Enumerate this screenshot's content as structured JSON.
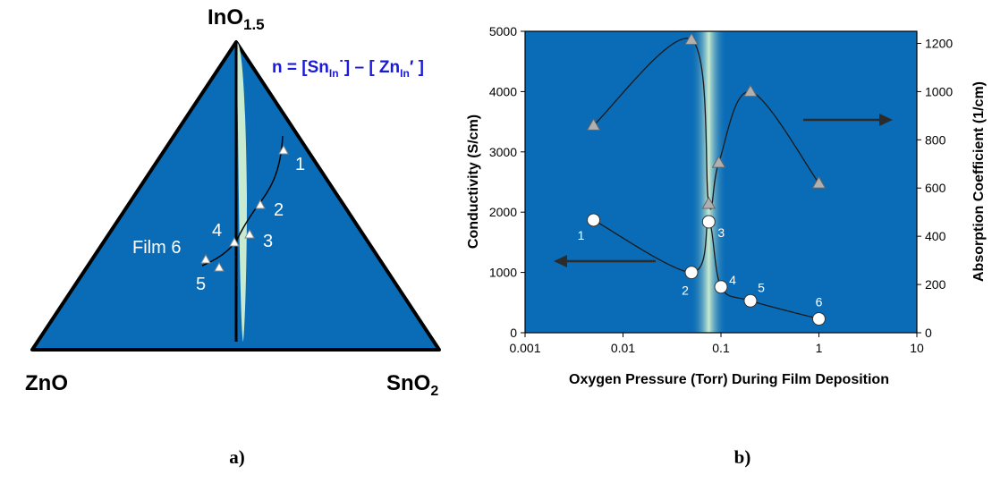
{
  "panel_a": {
    "caption": "a)",
    "apex_top": {
      "main": "InO",
      "sub": "1.5"
    },
    "apex_left": "ZnO",
    "apex_right": {
      "main": "SnO",
      "sub": "2"
    },
    "formula": {
      "part1": "n = [Sn",
      "sub1": "In",
      "part2": "˙] – [ Zn",
      "sub2": "In",
      "part3": "′ ]"
    },
    "film_label": "Film 6",
    "point_labels": [
      "1",
      "2",
      "3",
      "4",
      "5"
    ],
    "colors": {
      "fill": "#0a6cb6",
      "edge": "#000000",
      "band": "#c8ead0",
      "text_light": "#ffffff",
      "formula": "#1a1adc"
    }
  },
  "chart_data": {
    "type": "scatter",
    "caption": "b)",
    "xlabel": "Oxygen Pressure (Torr) During Film Deposition",
    "ylabel_left": "Conductivity (S/cm)",
    "ylabel_right": "Absorption  Coefficient (1/cm)",
    "x_scale": "log",
    "xlim": [
      0.001,
      10
    ],
    "x_ticks": [
      0.001,
      0.01,
      0.1,
      1,
      10
    ],
    "x_tick_labels": [
      "0.001",
      "0.01",
      "0.1",
      "1",
      "10"
    ],
    "ylim_left": [
      0,
      5000
    ],
    "y_ticks_left": [
      "0",
      "1000",
      "2000",
      "3000",
      "4000",
      "5000"
    ],
    "ylim_right": [
      0,
      1250
    ],
    "y_ticks_right": [
      "0",
      "200",
      "400",
      "600",
      "800",
      "1000",
      "1200"
    ],
    "grid": false,
    "background": "#0a6cb6",
    "highlight_band_x": 0.075,
    "series": [
      {
        "axis": "left",
        "marker": "circle",
        "x": [
          0.005,
          0.05,
          0.075,
          0.1,
          0.2,
          1
        ],
        "y": [
          1870,
          1000,
          1840,
          760,
          530,
          230
        ],
        "labels": [
          "1",
          "2",
          "3",
          "4",
          "5",
          "6"
        ]
      },
      {
        "axis": "right",
        "marker": "triangle",
        "x": [
          0.005,
          0.05,
          0.075,
          0.095,
          0.2,
          1
        ],
        "y": [
          860,
          1215,
          535,
          705,
          1000,
          620
        ]
      }
    ]
  }
}
